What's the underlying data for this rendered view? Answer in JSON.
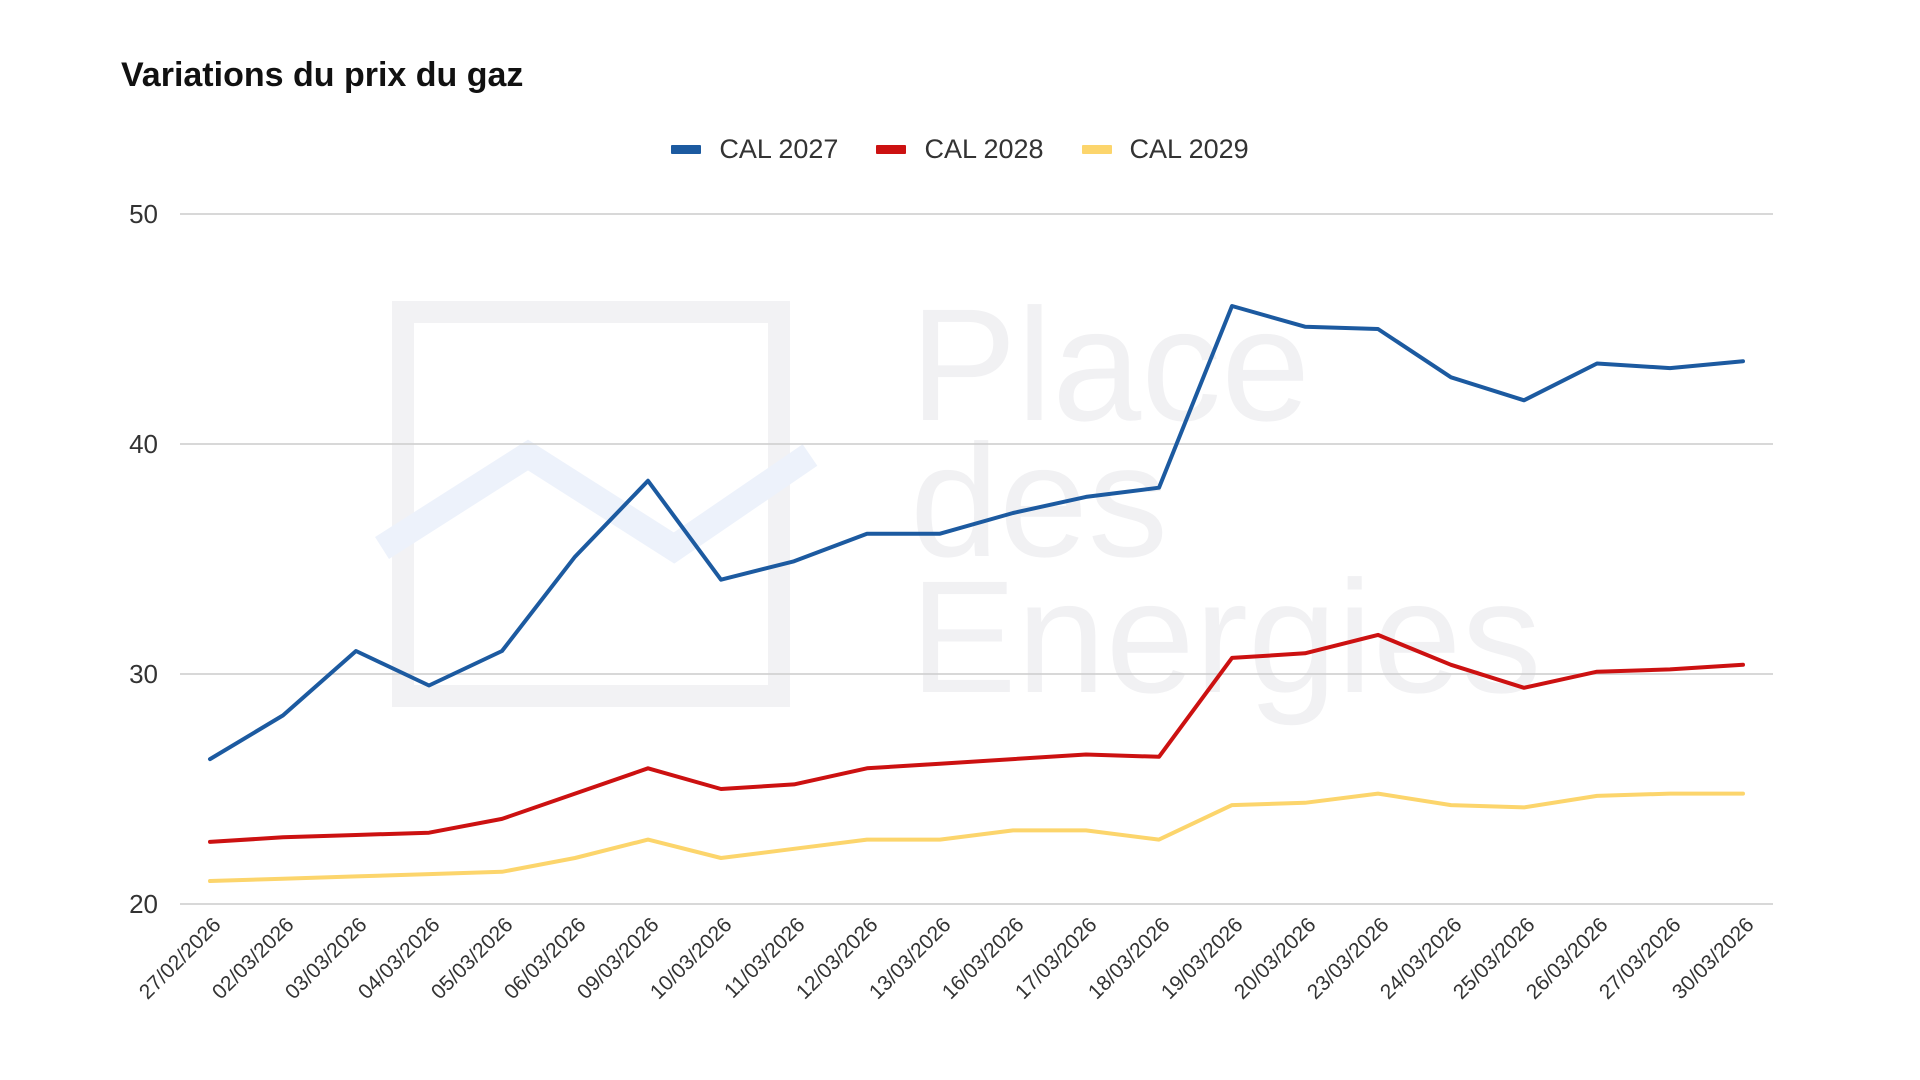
{
  "chart_data": {
    "type": "line",
    "title": "Variations du prix du gaz",
    "xlabel": "",
    "ylabel": "",
    "ylim": [
      20,
      50
    ],
    "yticks": [
      20,
      30,
      40,
      50
    ],
    "grid": true,
    "legend_position": "top-center",
    "watermark": "Place des Energies",
    "categories": [
      "27/02/2026",
      "02/03/2026",
      "03/03/2026",
      "04/03/2026",
      "05/03/2026",
      "06/03/2026",
      "09/03/2026",
      "10/03/2026",
      "11/03/2026",
      "12/03/2026",
      "13/03/2026",
      "16/03/2026",
      "17/03/2026",
      "18/03/2026",
      "19/03/2026",
      "20/03/2026",
      "23/03/2026",
      "24/03/2026",
      "25/03/2026",
      "26/03/2026",
      "27/03/2026",
      "30/03/2026"
    ],
    "series": [
      {
        "name": "CAL 2027",
        "color": "#1c5aa0",
        "values": [
          26.3,
          28.2,
          31.0,
          29.5,
          31.0,
          35.1,
          38.4,
          34.1,
          34.9,
          36.1,
          36.1,
          37.0,
          37.7,
          38.1,
          46.0,
          45.1,
          45.0,
          42.9,
          41.9,
          43.5,
          43.3,
          43.6
        ]
      },
      {
        "name": "CAL 2028",
        "color": "#cc1111",
        "values": [
          22.7,
          22.9,
          23.0,
          23.1,
          23.7,
          24.8,
          25.9,
          25.0,
          25.2,
          25.9,
          26.1,
          26.3,
          26.5,
          26.4,
          30.7,
          30.9,
          31.7,
          30.4,
          29.4,
          30.1,
          30.2,
          30.4
        ]
      },
      {
        "name": "CAL 2029",
        "color": "#fcd56c",
        "values": [
          21.0,
          21.1,
          21.2,
          21.3,
          21.4,
          22.0,
          22.8,
          22.0,
          22.4,
          22.8,
          22.8,
          23.2,
          23.2,
          22.8,
          24.3,
          24.4,
          24.8,
          24.3,
          24.2,
          24.7,
          24.8,
          24.8
        ]
      }
    ]
  }
}
